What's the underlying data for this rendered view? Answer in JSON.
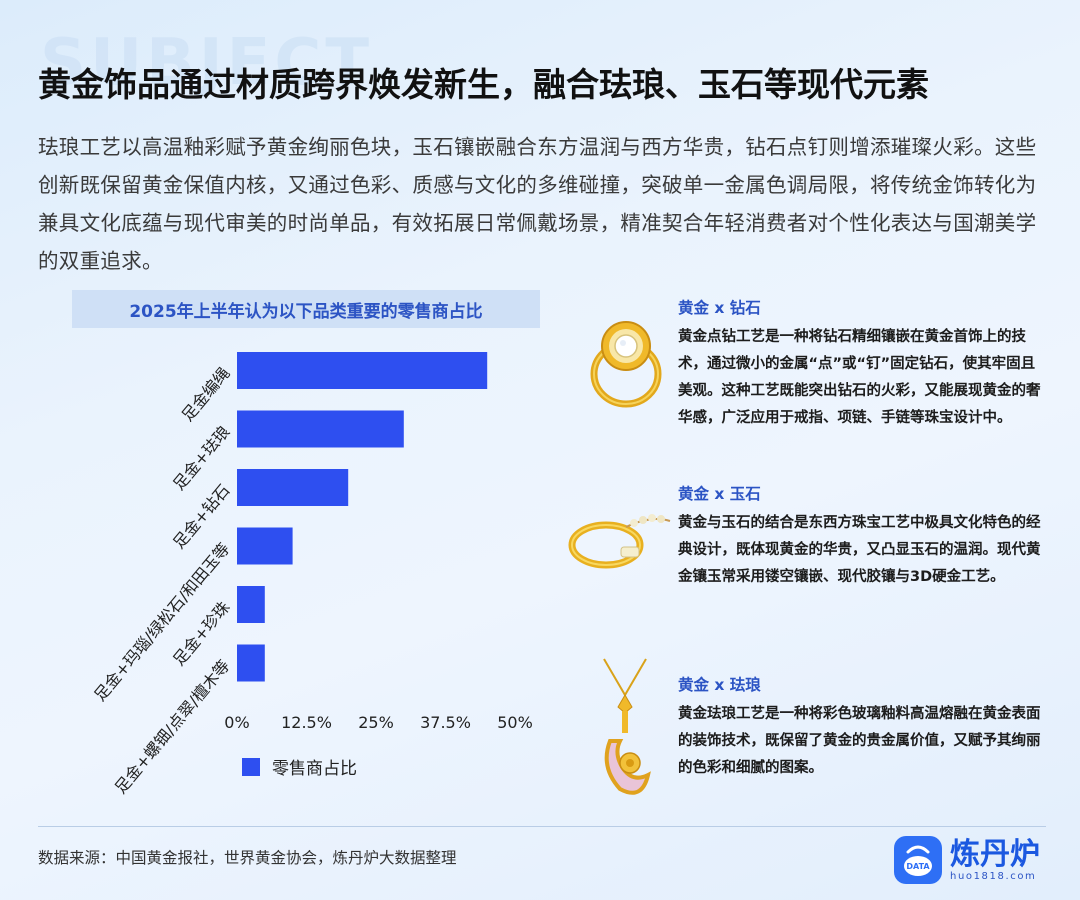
{
  "watermark": "SUBJECT",
  "title": "黄金饰品通过材质跨界焕发新生，融合珐琅、玉石等现代元素",
  "description": "珐琅工艺以高温釉彩赋予黄金绚丽色块，玉石镶嵌融合东方温润与西方华贵，钻石点钉则增添璀璨火彩。这些创新既保留黄金保值内核，又通过色彩、质感与文化的多维碰撞，突破单一金属色调局限，将传统金饰转化为兼具文化底蕴与现代审美的时尚单品，有效拓展日常佩戴场景，精准契合年轻消费者对个性化表达与国潮美学的双重追求。",
  "chart_data": {
    "type": "bar",
    "orientation": "horizontal",
    "title": "2025年上半年认为以下品类重要的零售商占比",
    "categories": [
      "足金编绳",
      "足金+珐琅",
      "足金+钻石",
      "足金+玛瑙/绿松石/和田玉等",
      "足金+珍珠",
      "足金+螺钿/点翠/檀木等"
    ],
    "series": [
      {
        "name": "零售商占比",
        "values": [
          45,
          30,
          20,
          10,
          5,
          5
        ]
      }
    ],
    "xlim": [
      0,
      50
    ],
    "xticks": [
      "0%",
      "12.5%",
      "25%",
      "37.5%",
      "50%"
    ],
    "xtick_values": [
      0,
      12.5,
      25,
      37.5,
      50
    ],
    "bar_color": "#2e4ff0",
    "legend": "bottom-left",
    "grid": false
  },
  "cards": [
    {
      "title": "黄金 x 钻石",
      "text": "黄金点钻工艺是一种将钻石精细镶嵌在黄金首饰上的技术，通过微小的金属“点”或“钉”固定钻石，使其牢固且美观。这种工艺既能突出钻石的火彩，又能展现黄金的奢华感，广泛应用于戒指、项链、手链等珠宝设计中。",
      "icon": "ring-icon"
    },
    {
      "title": "黄金 x 玉石",
      "text": "黄金与玉石的结合是东西方珠宝工艺中极具文化特色的经典设计，既体现黄金的华贵，又凸显玉石的温润。现代黄金镶玉常采用镂空镶嵌、现代胶镶与3D硬金工艺。",
      "icon": "bracelet-icon"
    },
    {
      "title": "黄金 x 珐琅",
      "text": "黄金珐琅工艺是一种将彩色玻璃釉料高温熔融在黄金表面的装饰技术，既保留了黄金的贵金属价值，又赋予其绚丽的色彩和细腻的图案。",
      "icon": "pendant-icon"
    }
  ],
  "source": "数据来源：中国黄金报社，世界黄金协会，炼丹炉大数据整理",
  "logo": {
    "name": "炼丹炉",
    "url": "huo1818.com",
    "badge": "DATA"
  },
  "colors": {
    "accent": "#2c54c4",
    "bar": "#2e4ff0",
    "logo": "#2e6ff5"
  }
}
